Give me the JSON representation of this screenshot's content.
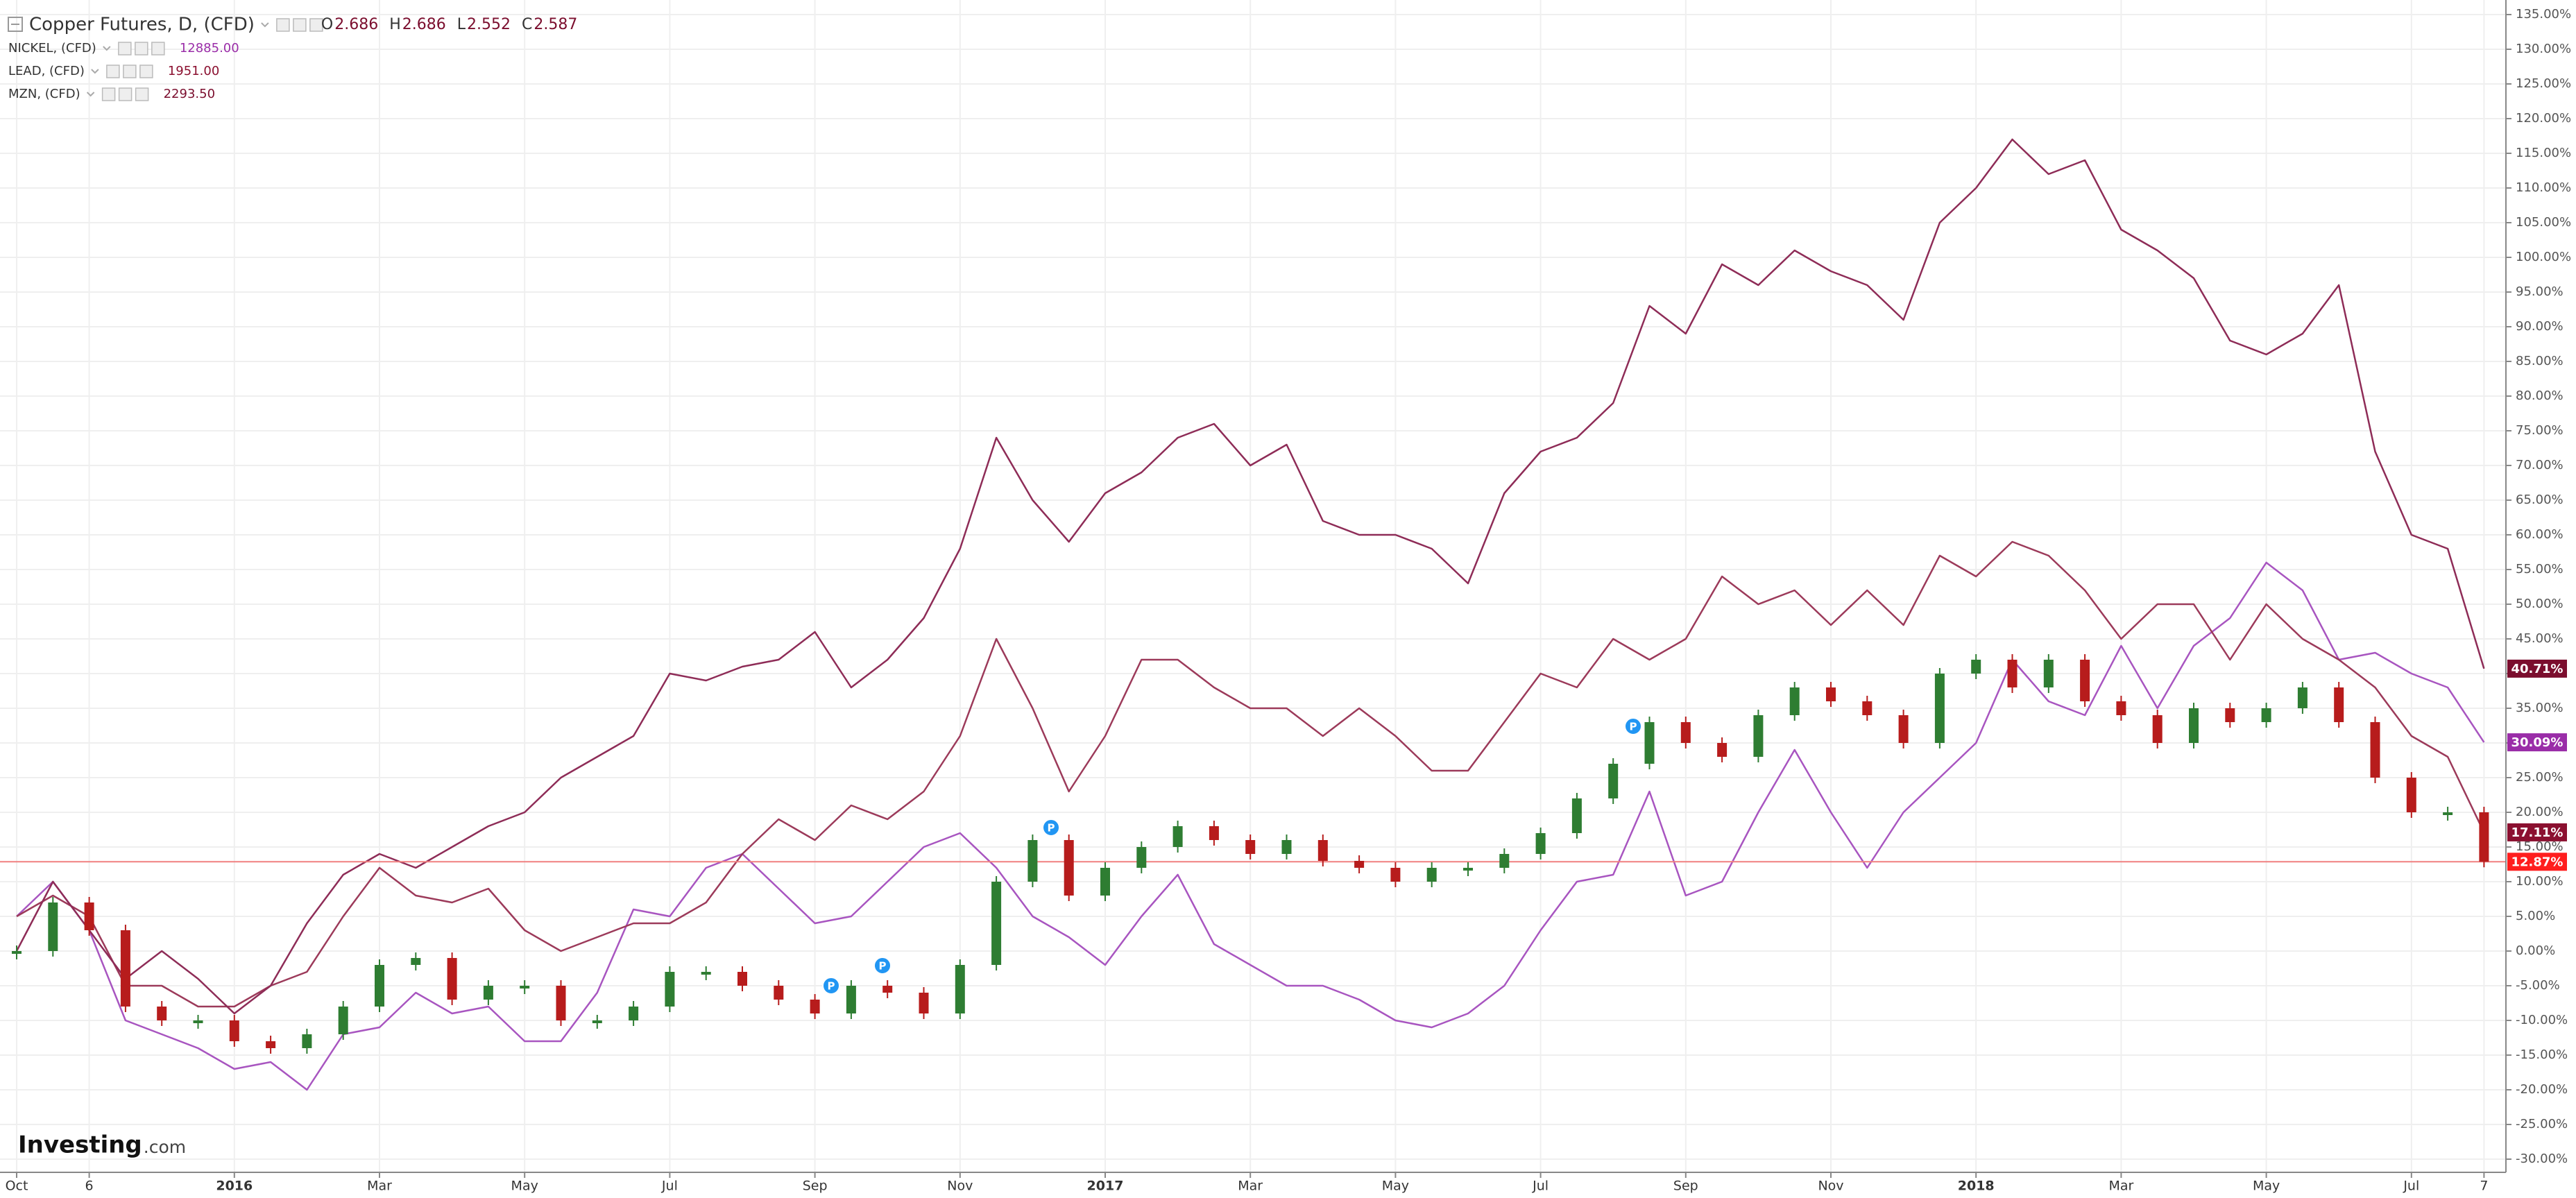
{
  "chart_data": {
    "type": "line",
    "grid": true,
    "ylim": [
      -31.9,
      137.1
    ],
    "yticks": [
      {
        "value": 135,
        "label": "135.00%"
      },
      {
        "value": 130,
        "label": "130.00%"
      },
      {
        "value": 125,
        "label": "125.00%"
      },
      {
        "value": 120,
        "label": "120.00%"
      },
      {
        "value": 115,
        "label": "115.00%"
      },
      {
        "value": 110,
        "label": "110.00%"
      },
      {
        "value": 105,
        "label": "105.00%"
      },
      {
        "value": 100,
        "label": "100.00%"
      },
      {
        "value": 95,
        "label": "95.00%"
      },
      {
        "value": 90,
        "label": "90.00%"
      },
      {
        "value": 85,
        "label": "85.00%"
      },
      {
        "value": 80,
        "label": "80.00%"
      },
      {
        "value": 75,
        "label": "75.00%"
      },
      {
        "value": 70,
        "label": "70.00%"
      },
      {
        "value": 65,
        "label": "65.00%"
      },
      {
        "value": 60,
        "label": "60.00%"
      },
      {
        "value": 55,
        "label": "55.00%"
      },
      {
        "value": 50,
        "label": "50.00%"
      },
      {
        "value": 45,
        "label": "45.00%"
      },
      {
        "value": 40,
        "label": "40.00%"
      },
      {
        "value": 35,
        "label": "35.00%"
      },
      {
        "value": 30,
        "label": "30.00%"
      },
      {
        "value": 25,
        "label": "25.00%"
      },
      {
        "value": 20,
        "label": "20.00%"
      },
      {
        "value": 15,
        "label": "15.00%"
      },
      {
        "value": 10,
        "label": "10.00%"
      },
      {
        "value": 5,
        "label": "5.00%"
      },
      {
        "value": 0,
        "label": "0.00%"
      },
      {
        "value": -5,
        "label": "-5.00%"
      },
      {
        "value": -10,
        "label": "-10.00%"
      },
      {
        "value": -15,
        "label": "-15.00%"
      },
      {
        "value": -20,
        "label": "-20.00%"
      },
      {
        "value": -25,
        "label": "-25.00%"
      },
      {
        "value": -30,
        "label": "-30.00%"
      }
    ],
    "categories": [
      "Oct",
      null,
      "6",
      null,
      null,
      null,
      "2016",
      null,
      null,
      null,
      "Mar",
      null,
      null,
      null,
      "May",
      null,
      null,
      null,
      "Jul",
      null,
      null,
      null,
      "Sep",
      null,
      null,
      null,
      "Nov",
      null,
      null,
      null,
      "2017",
      null,
      null,
      null,
      "Mar",
      null,
      null,
      null,
      "May",
      null,
      null,
      null,
      "Jul",
      null,
      null,
      null,
      "Sep",
      null,
      null,
      null,
      "Nov",
      null,
      null,
      null,
      "2018",
      null,
      null,
      null,
      "Mar",
      null,
      null,
      null,
      "May",
      null,
      null,
      null,
      "Jul",
      null,
      "7"
    ],
    "series": [
      {
        "name": "Copper Futures, D, (CFD)",
        "style": "candlestick",
        "color": "#ff1e1e",
        "up_color": "#2e7d32",
        "down_color": "#b71c1c",
        "legend_values": [
          {
            "label": "O",
            "value": "2.686"
          },
          {
            "label": "H",
            "value": "2.686"
          },
          {
            "label": "L",
            "value": "2.552"
          },
          {
            "label": "C",
            "value": "2.587"
          }
        ],
        "last_label": "12.87%",
        "values": [
          0,
          7,
          3,
          -8,
          -10,
          -10,
          -13,
          -14,
          -12,
          -8,
          -2,
          -1,
          -7,
          -5,
          -5,
          -10,
          -10,
          -8,
          -3,
          -3,
          -5,
          -7,
          -9,
          -5,
          -6,
          -9,
          -2,
          10,
          16,
          8,
          12,
          15,
          18,
          16,
          14,
          16,
          13,
          12,
          10,
          12,
          12,
          14,
          17,
          22,
          27,
          33,
          30,
          28,
          34,
          38,
          36,
          34,
          30,
          40,
          42,
          38,
          42,
          36,
          34,
          30,
          35,
          33,
          35,
          38,
          33,
          25,
          20,
          20,
          12.87
        ]
      },
      {
        "name": "NICKEL, (CFD)",
        "style": "line",
        "color": "#a855c0",
        "badge_color": "#9a2da8",
        "legend_values": [
          {
            "value": "12885.00"
          }
        ],
        "last_label": "30.09%",
        "values": [
          5,
          10,
          3,
          -10,
          -12,
          -14,
          -17,
          -16,
          -20,
          -12,
          -11,
          -6,
          -9,
          -8,
          -13,
          -13,
          -6,
          6,
          5,
          12,
          14,
          9,
          4,
          5,
          10,
          15,
          17,
          12,
          5,
          2,
          -2,
          5,
          11,
          1,
          -2,
          -5,
          -5,
          -7,
          -10,
          -11,
          -9,
          -5,
          3,
          10,
          11,
          23,
          8,
          10,
          20,
          29,
          20,
          12,
          20,
          25,
          30,
          42,
          36,
          34,
          44,
          35,
          44,
          48,
          56,
          52,
          42,
          43,
          40,
          38,
          30.09
        ]
      },
      {
        "name": "LEAD, (CFD)",
        "style": "line",
        "color": "#9c3a5a",
        "badge_color": "#8b1030",
        "legend_values": [
          {
            "value": "1951.00"
          }
        ],
        "last_label": "17.11%",
        "values": [
          5,
          8,
          5,
          -5,
          -5,
          -8,
          -8,
          -5,
          -3,
          5,
          12,
          8,
          7,
          9,
          3,
          0,
          2,
          4,
          4,
          7,
          14,
          19,
          16,
          21,
          19,
          23,
          31,
          45,
          35,
          23,
          31,
          42,
          42,
          38,
          35,
          35,
          31,
          35,
          31,
          26,
          26,
          33,
          40,
          38,
          45,
          42,
          45,
          54,
          50,
          52,
          47,
          52,
          47,
          57,
          54,
          59,
          57,
          52,
          45,
          50,
          50,
          42,
          50,
          45,
          42,
          38,
          31,
          28,
          17.11
        ]
      },
      {
        "name": "MZN, (CFD)",
        "style": "line",
        "color": "#8e2c57",
        "badge_color": "#7b0e2e",
        "legend_values": [
          {
            "value": "2293.50"
          }
        ],
        "last_label": "40.71%",
        "values": [
          0,
          10,
          3,
          -4,
          0,
          -4,
          -9,
          -5,
          4,
          11,
          14,
          12,
          15,
          18,
          20,
          25,
          28,
          31,
          40,
          39,
          41,
          42,
          46,
          38,
          42,
          48,
          58,
          74,
          65,
          59,
          66,
          69,
          74,
          76,
          70,
          73,
          62,
          60,
          60,
          58,
          53,
          66,
          72,
          74,
          79,
          93,
          89,
          99,
          96,
          101,
          98,
          96,
          91,
          105,
          110,
          117,
          112,
          114,
          104,
          101,
          97,
          88,
          86,
          89,
          96,
          72,
          60,
          58,
          40.71
        ]
      }
    ],
    "event_marker": "P",
    "logo": {
      "brand": "Investing",
      "suffix": ".com"
    }
  }
}
